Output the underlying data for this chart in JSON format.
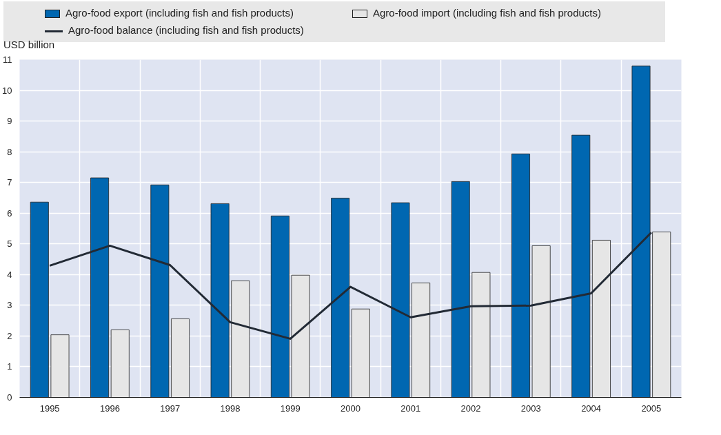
{
  "chart_data": {
    "type": "bar",
    "ylabel": "USD billion",
    "categories": [
      "1995",
      "1996",
      "1997",
      "1998",
      "1999",
      "2000",
      "2001",
      "2002",
      "2003",
      "2004",
      "2005"
    ],
    "series": [
      {
        "name": "Agro-food export (including fish and fish products)",
        "color": "#0067b1",
        "values": [
          6.36,
          7.15,
          6.92,
          6.31,
          5.91,
          6.49,
          6.34,
          7.03,
          7.93,
          8.54,
          10.79
        ]
      },
      {
        "name": "Agro-food import (including fish and fish products)",
        "color": "#e6e6e6",
        "values": [
          2.04,
          2.2,
          2.56,
          3.8,
          3.98,
          2.88,
          3.73,
          4.07,
          4.94,
          5.12,
          5.39
        ]
      },
      {
        "name": "Agro-food balance (including fish and fish products)",
        "type": "line",
        "color": "#222a35",
        "values": [
          4.29,
          4.94,
          4.31,
          2.45,
          1.91,
          3.6,
          2.61,
          2.97,
          2.99,
          3.39,
          5.37
        ]
      }
    ],
    "ylim": [
      0,
      11
    ],
    "yticks": [
      0,
      1,
      2,
      3,
      4,
      5,
      6,
      7,
      8,
      9,
      10,
      11
    ],
    "grid": true,
    "legend": "top"
  }
}
